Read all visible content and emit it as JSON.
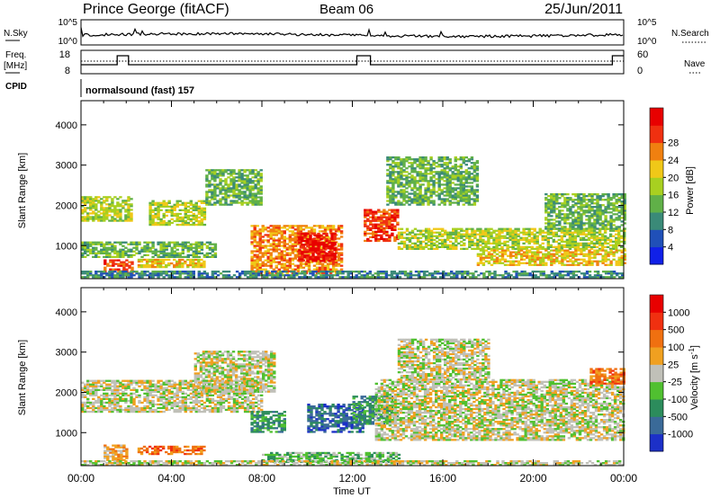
{
  "header": {
    "station": "Prince George (fitACF)",
    "beam": "Beam 06",
    "date": "25/Jun/2011"
  },
  "strips": {
    "nsky_label": "N.Sky",
    "nsky_ticks": [
      "10^5",
      "10^0"
    ],
    "nsearch_label": "N.Search",
    "nsearch_ticks": [
      "10^5",
      "10^0"
    ],
    "freq_label": "Freq.",
    "freq_unit": "[MHz]",
    "freq_ticks": [
      "18",
      "8"
    ],
    "nave_label": "Nave",
    "nave_ticks": [
      "60",
      "0"
    ],
    "cpid_label": "CPID",
    "cpid_text": "normalsound (fast) 157"
  },
  "x_axis": {
    "label": "Time UT",
    "ticks": [
      "00:00",
      "04:00",
      "08:00",
      "12:00",
      "16:00",
      "20:00",
      "00:00"
    ]
  },
  "chart_data": [
    {
      "type": "heatmap",
      "name": "power",
      "ylabel": "Slant Range [km]",
      "yticks": [
        1000,
        2000,
        3000,
        4000
      ],
      "ylim": [
        180,
        4600
      ],
      "xlim_hours": [
        0,
        24
      ],
      "colorbar": {
        "label": "Power [dB]",
        "ticks": [
          "4",
          "8",
          "12",
          "16",
          "20",
          "24",
          "28"
        ],
        "colors": [
          "#1020e8",
          "#2050b8",
          "#3a8a78",
          "#60b048",
          "#a8d020",
          "#f0c818",
          "#f08010",
          "#f03010",
          "#e80000"
        ]
      },
      "echo_regions": [
        {
          "t0": 0.0,
          "t1": 2.2,
          "r0": 1600,
          "r1": 2200,
          "level": 4
        },
        {
          "t0": 0.0,
          "t1": 6.0,
          "r0": 700,
          "r1": 1100,
          "level": 3
        },
        {
          "t0": 1.0,
          "t1": 2.3,
          "r0": 300,
          "r1": 650,
          "level": 7
        },
        {
          "t0": 3.0,
          "t1": 5.5,
          "r0": 1500,
          "r1": 2100,
          "level": 4
        },
        {
          "t0": 5.5,
          "t1": 8.0,
          "r0": 2000,
          "r1": 2900,
          "level": 3
        },
        {
          "t0": 2.5,
          "t1": 5.5,
          "r0": 450,
          "r1": 650,
          "level": 5
        },
        {
          "t0": 7.5,
          "t1": 11.5,
          "r0": 300,
          "r1": 1500,
          "level": 6
        },
        {
          "t0": 9.6,
          "t1": 11.2,
          "r0": 600,
          "r1": 1300,
          "level": 8
        },
        {
          "t0": 12.5,
          "t1": 14.0,
          "r0": 1100,
          "r1": 1900,
          "level": 7
        },
        {
          "t0": 13.5,
          "t1": 17.5,
          "r0": 2000,
          "r1": 3200,
          "level": 3
        },
        {
          "t0": 14.0,
          "t1": 24.0,
          "r0": 900,
          "r1": 1400,
          "level": 4
        },
        {
          "t0": 17.5,
          "t1": 24.0,
          "r0": 500,
          "r1": 900,
          "level": 5
        },
        {
          "t0": 20.5,
          "t1": 24.0,
          "r0": 1400,
          "r1": 2300,
          "level": 3
        },
        {
          "t0": 0.0,
          "t1": 24.0,
          "r0": 200,
          "r1": 350,
          "level": 2
        }
      ]
    },
    {
      "type": "heatmap",
      "name": "velocity",
      "ylabel": "Slant Range [km]",
      "yticks": [
        1000,
        2000,
        3000,
        4000
      ],
      "ylim": [
        180,
        4600
      ],
      "xlim_hours": [
        0,
        24
      ],
      "colorbar": {
        "label": "Velocity [m s^-1]",
        "ticks": [
          "1000",
          "500",
          "100",
          "25",
          "-25",
          "-100",
          "-500",
          "-1000"
        ],
        "colors": [
          "#1c30c8",
          "#3a6a98",
          "#2c8c5c",
          "#50c030",
          "#c0c0b8",
          "#f0a020",
          "#f07010",
          "#f03010",
          "#e80000"
        ]
      },
      "echo_regions": [
        {
          "t0": 0.0,
          "t1": 8.0,
          "r0": 1500,
          "r1": 2300,
          "level": 4
        },
        {
          "t0": 5.0,
          "t1": 8.5,
          "r0": 2000,
          "r1": 3000,
          "level": 4
        },
        {
          "t0": 1.0,
          "t1": 2.0,
          "r0": 300,
          "r1": 700,
          "level": 5
        },
        {
          "t0": 2.5,
          "t1": 5.5,
          "r0": 450,
          "r1": 650,
          "level": 6
        },
        {
          "t0": 7.5,
          "t1": 9.0,
          "r0": 1000,
          "r1": 1500,
          "level": 2
        },
        {
          "t0": 10.0,
          "t1": 12.5,
          "r0": 1000,
          "r1": 1700,
          "level": 1
        },
        {
          "t0": 12.0,
          "t1": 14.0,
          "r0": 1200,
          "r1": 1900,
          "level": 2
        },
        {
          "t0": 8.0,
          "t1": 14.0,
          "r0": 250,
          "r1": 500,
          "level": 3
        },
        {
          "t0": 13.0,
          "t1": 24.0,
          "r0": 800,
          "r1": 2300,
          "level": 4
        },
        {
          "t0": 14.0,
          "t1": 18.0,
          "r0": 2300,
          "r1": 3300,
          "level": 4
        },
        {
          "t0": 22.5,
          "t1": 24.0,
          "r0": 2200,
          "r1": 2600,
          "level": 6
        },
        {
          "t0": 0.0,
          "t1": 24.0,
          "r0": 180,
          "r1": 300,
          "level": 4
        }
      ]
    }
  ]
}
